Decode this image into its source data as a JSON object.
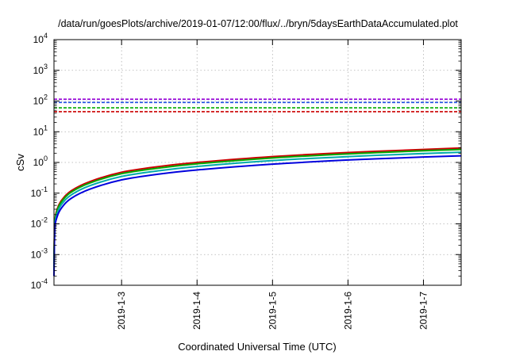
{
  "chart_data": {
    "type": "line",
    "title": "/data/run/goesPlots/archive/2019-01-07/12:00/flux/../bryn/5daysEarthDataAccumulated.plot",
    "xlabel": "Coordinated Universal Time (UTC)",
    "ylabel": "cSv",
    "y_scale": "log",
    "ylim": [
      0.0001,
      10000
    ],
    "xlim": [
      "2019-01-02 02:30",
      "2019-01-07 12:00"
    ],
    "y_ticks": [
      {
        "base": "10",
        "exp": "-4"
      },
      {
        "base": "10",
        "exp": "-3"
      },
      {
        "base": "10",
        "exp": "-2"
      },
      {
        "base": "10",
        "exp": "-1"
      },
      {
        "base": "10",
        "exp": "0"
      },
      {
        "base": "10",
        "exp": "1"
      },
      {
        "base": "10",
        "exp": "2"
      },
      {
        "base": "10",
        "exp": "3"
      },
      {
        "base": "10",
        "exp": "4"
      }
    ],
    "x_ticks": [
      {
        "label": "2019-1-3",
        "date": "2019-01-03 00:00"
      },
      {
        "label": "2019-1-4",
        "date": "2019-01-04 00:00"
      },
      {
        "label": "2019-1-5",
        "date": "2019-01-05 00:00"
      },
      {
        "label": "2019-1-6",
        "date": "2019-01-06 00:00"
      },
      {
        "label": "2019-1-7",
        "date": "2019-01-07 00:00"
      }
    ],
    "grid": true,
    "legend": "none",
    "series": [
      {
        "color": "#cc0000",
        "style": "dashed",
        "x": [
          "2019-01-02 02:30",
          "2019-01-07 12:00"
        ],
        "y": [
          45,
          45
        ]
      },
      {
        "color": "#00aa00",
        "style": "dashed",
        "x": [
          "2019-01-02 02:30",
          "2019-01-07 12:00"
        ],
        "y": [
          60,
          60
        ]
      },
      {
        "color": "#1f4fe0",
        "style": "dashed",
        "x": [
          "2019-01-02 02:30",
          "2019-01-07 12:00"
        ],
        "y": [
          90,
          90
        ]
      },
      {
        "color": "#9400d3",
        "style": "dashed",
        "x": [
          "2019-01-02 02:30",
          "2019-01-07 12:00"
        ],
        "y": [
          115,
          115
        ]
      },
      {
        "color": "#cc0000",
        "style": "solid",
        "x": [
          "2019-01-02 02:30",
          "2019-01-02 02:45",
          "2019-01-02 03:30",
          "2019-01-02 05:00",
          "2019-01-02 08:00",
          "2019-01-02 14:00",
          "2019-01-03 00:00",
          "2019-01-03 12:00",
          "2019-01-04 00:00",
          "2019-01-05 00:00",
          "2019-01-06 00:00",
          "2019-01-07 00:00",
          "2019-01-07 12:00"
        ],
        "y": [
          0.0005,
          0.01,
          0.03,
          0.06,
          0.12,
          0.24,
          0.48,
          0.74,
          1.0,
          1.55,
          2.1,
          2.65,
          2.95
        ]
      },
      {
        "color": "#00aa00",
        "style": "solid",
        "x": [
          "2019-01-02 02:30",
          "2019-01-02 02:45",
          "2019-01-02 03:30",
          "2019-01-02 05:00",
          "2019-01-02 08:00",
          "2019-01-02 14:00",
          "2019-01-03 00:00",
          "2019-01-03 12:00",
          "2019-01-04 00:00",
          "2019-01-05 00:00",
          "2019-01-06 00:00",
          "2019-01-07 00:00",
          "2019-01-07 12:00"
        ],
        "y": [
          0.0004,
          0.009,
          0.027,
          0.054,
          0.108,
          0.216,
          0.43,
          0.66,
          0.9,
          1.4,
          1.9,
          2.4,
          2.65
        ]
      },
      {
        "color": "#00aaaa",
        "style": "solid",
        "x": [
          "2019-01-02 02:30",
          "2019-01-02 02:45",
          "2019-01-02 03:30",
          "2019-01-02 05:00",
          "2019-01-02 08:00",
          "2019-01-02 14:00",
          "2019-01-03 00:00",
          "2019-01-03 12:00",
          "2019-01-04 00:00",
          "2019-01-05 00:00",
          "2019-01-06 00:00",
          "2019-01-07 00:00",
          "2019-01-07 12:00"
        ],
        "y": [
          0.0003,
          0.0075,
          0.022,
          0.044,
          0.088,
          0.176,
          0.35,
          0.54,
          0.74,
          1.15,
          1.55,
          1.95,
          2.15
        ]
      },
      {
        "color": "#0000dd",
        "style": "solid",
        "x": [
          "2019-01-02 02:30",
          "2019-01-02 02:45",
          "2019-01-02 03:30",
          "2019-01-02 05:00",
          "2019-01-02 08:00",
          "2019-01-02 14:00",
          "2019-01-03 00:00",
          "2019-01-03 12:00",
          "2019-01-04 00:00",
          "2019-01-05 00:00",
          "2019-01-06 00:00",
          "2019-01-07 00:00",
          "2019-01-07 12:00"
        ],
        "y": [
          0.0002,
          0.006,
          0.017,
          0.034,
          0.068,
          0.136,
          0.27,
          0.42,
          0.57,
          0.88,
          1.2,
          1.5,
          1.65
        ]
      }
    ]
  }
}
